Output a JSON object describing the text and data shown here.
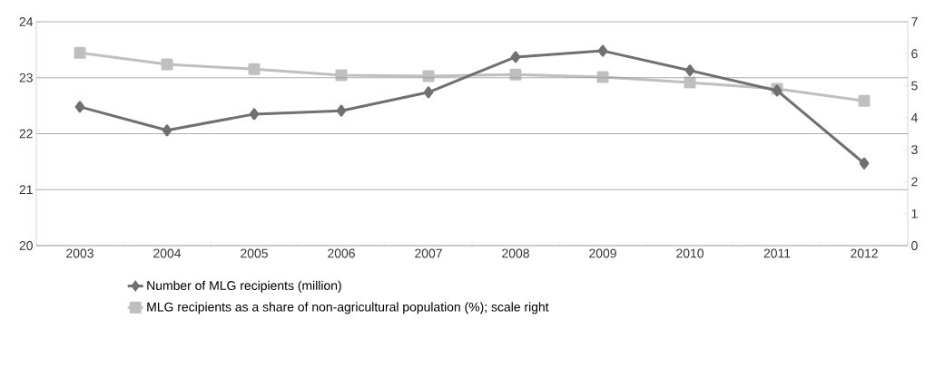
{
  "chart_data": {
    "type": "line",
    "categories": [
      "2003",
      "2004",
      "2005",
      "2006",
      "2007",
      "2008",
      "2009",
      "2010",
      "2011",
      "2012"
    ],
    "series": [
      {
        "name": "Number of MLG recipients (million)",
        "color": "#707070",
        "marker": "diamond",
        "values": [
          22.48,
          22.06,
          22.35,
          22.41,
          22.74,
          23.37,
          23.48,
          23.13,
          22.77,
          21.47
        ]
      },
      {
        "name": "MLG recipients as a share of non-agricultural population (%); scale right",
        "color": "#bfbfbf",
        "marker": "square",
        "axis": "y2",
        "values": [
          6.03,
          5.67,
          5.52,
          5.33,
          5.3,
          5.35,
          5.27,
          5.1,
          4.9,
          4.53
        ]
      }
    ],
    "ylim": [
      20,
      24
    ],
    "yticks": [
      20,
      21,
      22,
      23,
      24
    ],
    "y2lim": [
      0,
      7
    ],
    "y2ticks": [
      0,
      1,
      2,
      3,
      4,
      5,
      6,
      7
    ],
    "grid": "y",
    "legend": "bottom",
    "line_style": "solid"
  }
}
